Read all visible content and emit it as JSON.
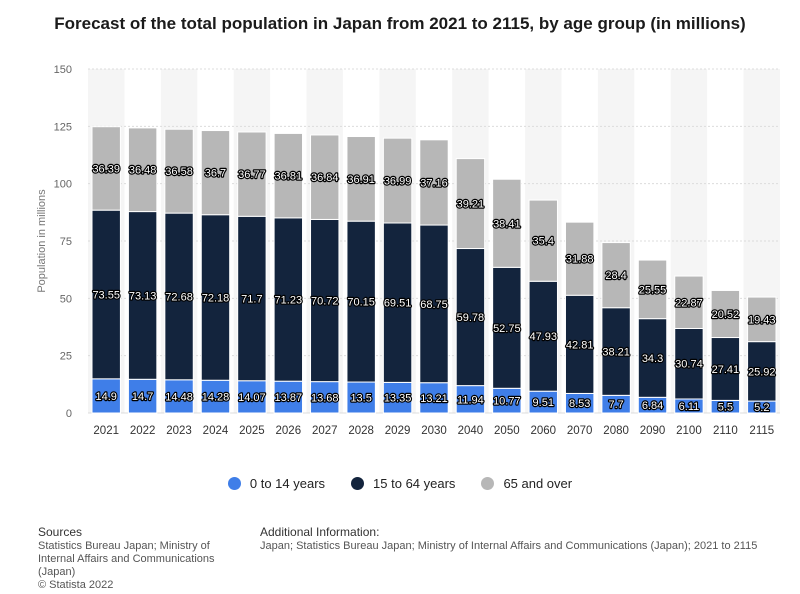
{
  "title": "Forecast of the total population in Japan from 2021 to 2115, by age group (in millions)",
  "chart_data": {
    "type": "bar",
    "stacked": true,
    "ylabel": "Population in millions",
    "ylim": [
      0,
      150
    ],
    "yticks": [
      0,
      25,
      50,
      75,
      100,
      125,
      150
    ],
    "grid": true,
    "legend_position": "bottom",
    "categories": [
      "2021",
      "2022",
      "2023",
      "2024",
      "2025",
      "2026",
      "2027",
      "2028",
      "2029",
      "2030",
      "2040",
      "2050",
      "2060",
      "2070",
      "2080",
      "2090",
      "2100",
      "2110",
      "2115"
    ],
    "series": [
      {
        "name": "0 to 14 years",
        "color": "#3f7ee8",
        "values": [
          14.9,
          14.7,
          14.48,
          14.28,
          14.07,
          13.87,
          13.68,
          13.5,
          13.35,
          13.21,
          11.94,
          10.77,
          9.51,
          8.53,
          7.7,
          6.84,
          6.11,
          5.5,
          5.2
        ]
      },
      {
        "name": "15 to 64 years",
        "color": "#13243d",
        "values": [
          73.55,
          73.13,
          72.68,
          72.18,
          71.7,
          71.23,
          70.72,
          70.15,
          69.51,
          68.75,
          59.78,
          52.75,
          47.93,
          42.81,
          38.21,
          34.3,
          30.74,
          27.41,
          25.92
        ]
      },
      {
        "name": "65 and over",
        "color": "#b7b7b7",
        "values": [
          36.39,
          36.48,
          36.58,
          36.7,
          36.77,
          36.81,
          36.84,
          36.91,
          36.99,
          37.16,
          39.21,
          38.41,
          35.4,
          31.88,
          28.4,
          25.55,
          22.87,
          20.52,
          19.43
        ]
      }
    ]
  },
  "legend": {
    "items": [
      {
        "label": "0 to 14 years",
        "color": "#3f7ee8"
      },
      {
        "label": "15 to 64 years",
        "color": "#13243d"
      },
      {
        "label": "65 and over",
        "color": "#b7b7b7"
      }
    ]
  },
  "footer": {
    "sources_heading": "Sources",
    "sources_text": "Statistics Bureau Japan; Ministry of Internal Affairs and Communications (Japan)",
    "copyright": "© Statista 2022",
    "additional_heading": "Additional Information:",
    "additional_text": "Japan; Statistics Bureau Japan; Ministry of Internal Affairs and Communications (Japan); 2021 to 2115"
  }
}
